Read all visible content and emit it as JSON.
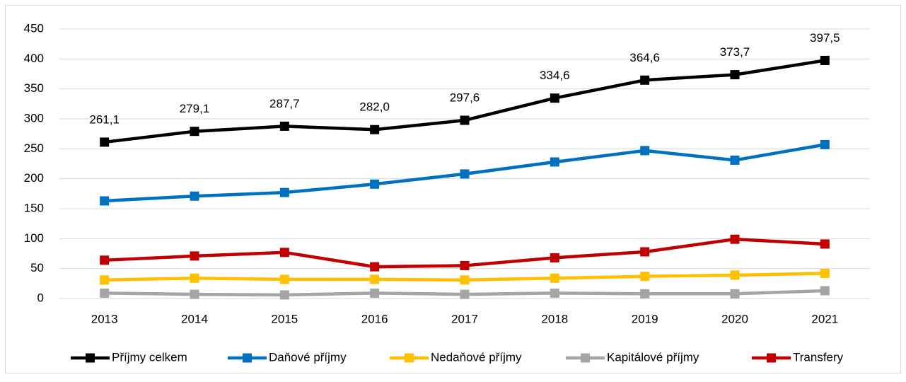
{
  "chart_data": {
    "type": "line",
    "categories": [
      "2013",
      "2014",
      "2015",
      "2016",
      "2017",
      "2018",
      "2019",
      "2020",
      "2021"
    ],
    "series": [
      {
        "name": "Příjmy celkem",
        "color": "#000000",
        "values": [
          261.1,
          279.1,
          287.7,
          282.0,
          297.6,
          334.6,
          364.6,
          373.7,
          397.5
        ],
        "value_labels": [
          "261,1",
          "279,1",
          "287,7",
          "282,0",
          "297,6",
          "334,6",
          "364,6",
          "373,7",
          "397,5"
        ]
      },
      {
        "name": "Daňové příjmy",
        "color": "#0070c0",
        "values": [
          163,
          171,
          177,
          191,
          208,
          228,
          247,
          231,
          257
        ]
      },
      {
        "name": "Nedaňové příjmy",
        "color": "#ffc000",
        "values": [
          31,
          34,
          32,
          32,
          31,
          34,
          37,
          39,
          42
        ]
      },
      {
        "name": "Kapitálové příjmy",
        "color": "#a5a5a5",
        "values": [
          9,
          7,
          6,
          9,
          7,
          9,
          8,
          8,
          13
        ]
      },
      {
        "name": "Transfery",
        "color": "#c00000",
        "values": [
          64,
          71,
          77,
          53,
          55,
          68,
          78,
          99,
          91
        ]
      }
    ],
    "ylim": [
      0,
      450
    ],
    "yticks": [
      0,
      50,
      100,
      150,
      200,
      250,
      300,
      350,
      400,
      450
    ],
    "grid": true,
    "legend": "bottom"
  }
}
